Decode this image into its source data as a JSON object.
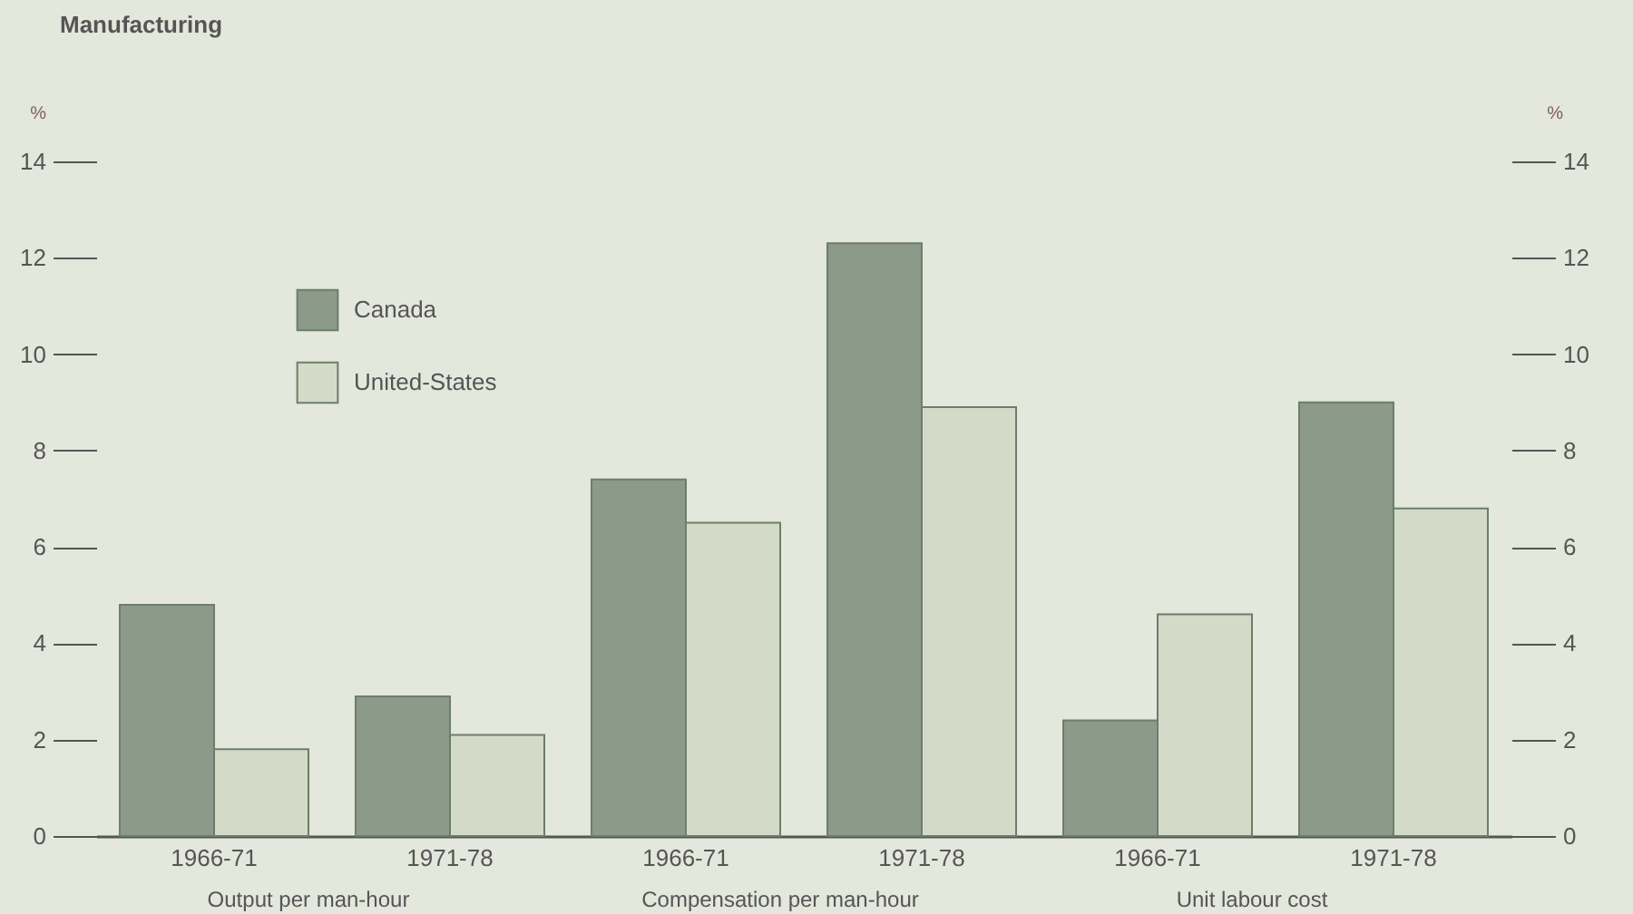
{
  "chart_data": {
    "type": "bar",
    "title": "Manufacturing",
    "ylabel": "%",
    "y2label": "%",
    "categories": [
      "1966-71",
      "1971-78",
      "1966-71",
      "1971-78",
      "1966-71",
      "1971-78"
    ],
    "series": [
      {
        "name": "Canada",
        "color": "#8c9a8a",
        "values": [
          4.8,
          2.9,
          7.4,
          12.3,
          2.4,
          9.0
        ]
      },
      {
        "name": "United-States",
        "color": "#d3dbc8",
        "values": [
          1.8,
          2.1,
          6.5,
          8.9,
          4.6,
          6.8
        ]
      }
    ],
    "ylim": [
      0,
      14
    ],
    "yticks": [
      0,
      2,
      4,
      6,
      8,
      10,
      12,
      14
    ],
    "y2lim": [
      0,
      14
    ],
    "y2ticks": [
      0,
      2,
      4,
      6,
      8,
      10,
      12,
      14
    ],
    "annotations": [
      "Output per man-hour",
      "Compensation per man-hour",
      "Unit labour cost"
    ],
    "legend": "top left",
    "grid": false
  }
}
